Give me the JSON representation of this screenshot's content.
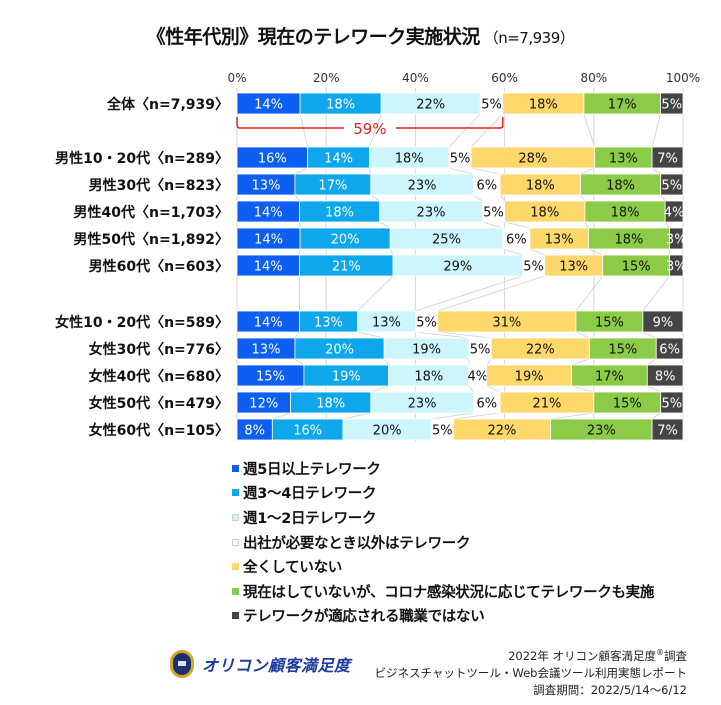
{
  "title": "《性年代別》現在のテレワーク実施状況",
  "subtitle": "（n=7,939）",
  "chart_data": {
    "type": "bar",
    "orientation": "horizontal",
    "stacked": "percent",
    "title": "《性年代別》現在のテレワーク実施状況（n=7,939）",
    "xlabel": "",
    "ylabel": "",
    "xlim": [
      0,
      100
    ],
    "x_ticks": [
      "0%",
      "20%",
      "40%",
      "60%",
      "80%",
      "100%"
    ],
    "grid": true,
    "legend_position": "bottom",
    "categories": [
      "全体〈n=7,939〉",
      "男性10・20代〈n=289〉",
      "男性30代〈n=823〉",
      "男性40代〈n=1,703〉",
      "男性50代〈n=1,892〉",
      "男性60代〈n=603〉",
      "女性10・20代〈n=589〉",
      "女性30代〈n=776〉",
      "女性40代〈n=680〉",
      "女性50代〈n=479〉",
      "女性60代〈n=105〉"
    ],
    "series": [
      {
        "name": "週5日以上テレワーク",
        "color": "#0d5ff2",
        "label_color": "#ffffff",
        "values": [
          14,
          16,
          13,
          14,
          14,
          14,
          14,
          13,
          15,
          12,
          8
        ]
      },
      {
        "name": "週3～4日テレワーク",
        "color": "#0fa7ec",
        "label_color": "#ffffff",
        "values": [
          18,
          14,
          17,
          18,
          20,
          21,
          13,
          20,
          19,
          18,
          16
        ]
      },
      {
        "name": "週1～2日テレワーク",
        "color": "#ccf6fc",
        "label_color": "#111111",
        "values": [
          22,
          18,
          23,
          23,
          25,
          29,
          13,
          19,
          18,
          23,
          20
        ]
      },
      {
        "name": "出社が必要なとき以外はテレワーク",
        "color": "#ffffff",
        "label_color": "#111111",
        "values": [
          5,
          5,
          6,
          5,
          6,
          5,
          5,
          5,
          4,
          6,
          5
        ]
      },
      {
        "name": "全くしていない",
        "color": "#fed86a",
        "label_color": "#111111",
        "values": [
          18,
          28,
          18,
          18,
          13,
          13,
          31,
          22,
          19,
          21,
          22
        ]
      },
      {
        "name": "現在はしていないが、コロナ感染状況に応じてテレワークも実施",
        "color": "#8ccb48",
        "label_color": "#111111",
        "values": [
          17,
          13,
          18,
          18,
          18,
          15,
          15,
          15,
          17,
          15,
          23
        ]
      },
      {
        "name": "テレワークが適応される職業ではない",
        "color": "#454545",
        "label_color": "#ffffff",
        "values": [
          5,
          7,
          5,
          4,
          3,
          3,
          9,
          6,
          8,
          5,
          7
        ]
      }
    ],
    "annotations": [
      {
        "text": "59%",
        "color": "#e0201b",
        "type": "bracket",
        "row": "全体〈n=7,939〉",
        "spans_series": [
          0,
          1,
          2,
          3
        ]
      }
    ]
  },
  "footer": {
    "logo_text": "オリコン顧客満足度",
    "credit_line1_pre": "2022年 オリコン顧客満足度",
    "credit_line1_sup": "®",
    "credit_line1_post": "調査",
    "credit_line2": "ビジネスチャットツール・Web会議ツール利用実態レポート",
    "credit_line3": "調査期間：2022/5/14～6/12"
  }
}
